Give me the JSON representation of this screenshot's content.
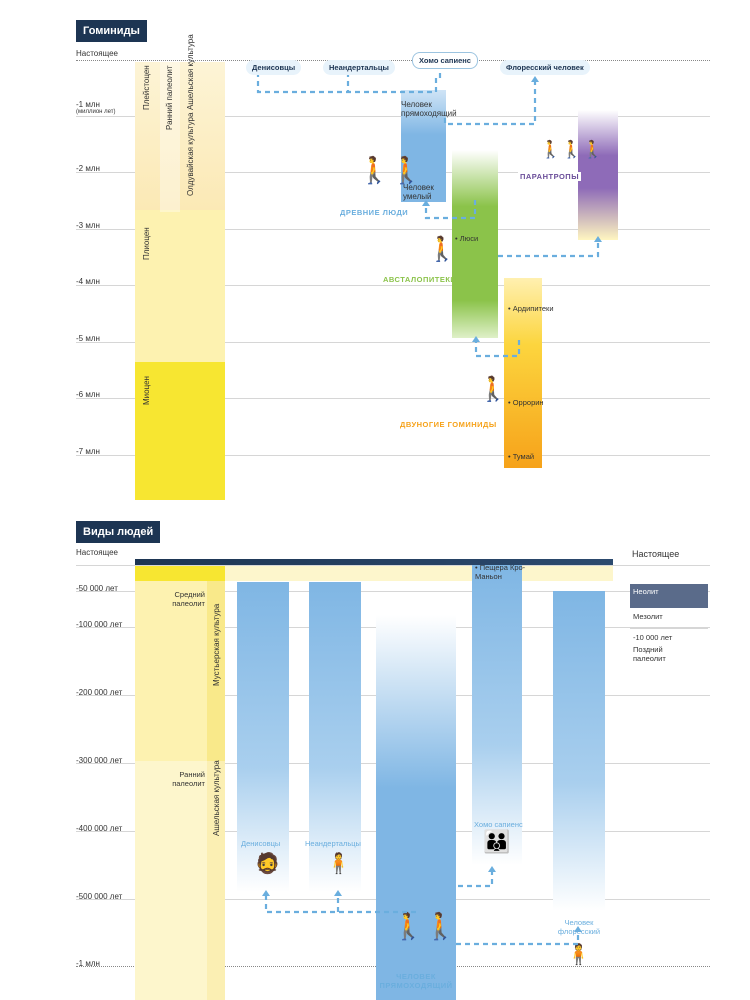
{
  "top": {
    "title": "Гоминиды",
    "ticks": [
      "Настоящее",
      "-1 млн",
      "(миллион лет)",
      "-2 млн",
      "-3 млн",
      "-4 млн",
      "-5 млн",
      "-6 млн",
      "-7 млн"
    ],
    "epochs": [
      "Плейстоцен",
      "Плиоцен",
      "Миоцен"
    ],
    "cultures": [
      "Ранний палеолит",
      "Ашельская культура",
      "Олдувайская культура"
    ],
    "species_pills": [
      "Денисовцы",
      "Неандертальцы",
      "Хомо сапиенс",
      "Флоресский человек"
    ],
    "homo_labels": [
      "Человек прямоходящий",
      "Человек умелый"
    ],
    "group_labels": [
      "ДРЕВНИЕ ЛЮДИ",
      "АВСТАЛОПИТЕКИ",
      "ПАРАНТРОПЫ",
      "ДВУНОГИЕ ГОМИНИДЫ"
    ],
    "points": [
      "Люси",
      "Ардипитеки",
      "Оррорин",
      "Тумай"
    ]
  },
  "bottom": {
    "title": "Виды людей",
    "ticks": [
      "Настоящее",
      "-50 000 лет",
      "-100 000 лет",
      "-200 000 лет",
      "-300 000 лет",
      "-400 000 лет",
      "-500 000 лет",
      "-1 млн"
    ],
    "culture_labels": [
      "Средний палеолит",
      "Мустьерская культура",
      "Ранний палеолит",
      "Ашельская культура"
    ],
    "cave": "Пещера Кро-Маньон",
    "species": [
      "Денисовцы",
      "Неандертальцы",
      "ЧЕЛОВЕК ПРЯМОХОДЯЩИЙ",
      "Хомо сапиенс",
      "Человек флоресский"
    ],
    "right_legend": [
      "Настоящее",
      "Неолит",
      "Мезолит",
      "-10 000 лет",
      "Поздний палеолит"
    ]
  },
  "colors": {
    "navy": "#1d3553",
    "blue": "#7fb6e4",
    "yellow": "#f7e631",
    "paleYellow": "#fdf6cc",
    "green": "#8bc34a",
    "purple": "#8e6bb8",
    "orange": "#f6a21a",
    "dashed": "#6aaede"
  }
}
